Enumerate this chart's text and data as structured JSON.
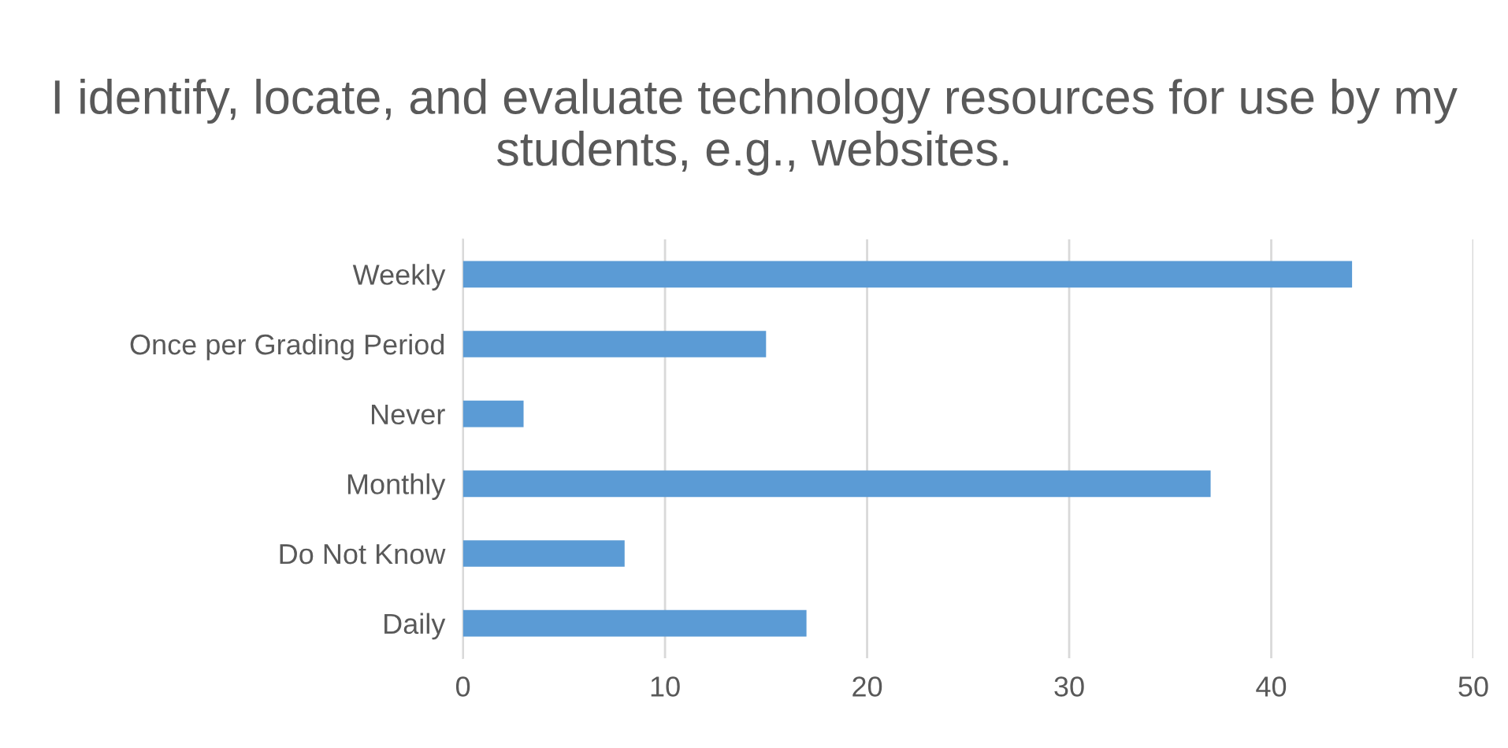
{
  "chart_data": {
    "type": "bar",
    "orientation": "horizontal",
    "title": "I identify, locate, and evaluate technology resources for use by my students, e.g., websites.",
    "categories": [
      "Weekly",
      "Once per Grading Period",
      "Never",
      "Monthly",
      "Do Not Know",
      "Daily"
    ],
    "values": [
      44,
      15,
      3,
      37,
      8,
      17
    ],
    "color": "#5b9bd5",
    "xlim": [
      0,
      50
    ],
    "xticks": [
      0,
      10,
      20,
      30,
      40,
      50
    ],
    "grid": "x",
    "legend": false
  }
}
